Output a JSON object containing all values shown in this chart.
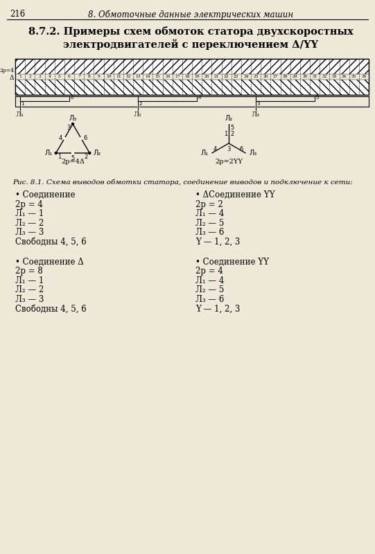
{
  "page_number": "216",
  "header_text": "8. Обмоточные данные электрических машин",
  "section_title_line1": "8.7.2. Примеры схем обмоток статора двухскоростных",
  "section_title_line2": "электродвигателей с переключением Δ/YY",
  "bg_color": "#ede8d8",
  "fig_caption": "Рис. 8.1. Схема выводов обмотки статора, соединение выводов и подключение к сети:",
  "col1_block1_title": "• Соединение",
  "col1_block1_lines": [
    "2р = 4",
    "Л₁ — 1",
    "Л₂ — 2",
    "Л₃ — 3",
    "Свободны 4, 5, 6"
  ],
  "col2_block1_title": "• ΔСоединение YY",
  "col2_block1_lines": [
    "2р = 2",
    "Л₁ — 4",
    "Л₂ — 5",
    "Л₃ — 6",
    "Y — 1, 2, 3"
  ],
  "col1_block2_title": "• Соединение Δ",
  "col1_block2_lines": [
    "2р = 8",
    "Л₁ — 1",
    "Л₂ — 2",
    "Л₃ — 3",
    "Свободны 4, 5, 6"
  ],
  "col2_block2_title": "• Соединение YY",
  "col2_block2_lines": [
    "2р = 4",
    "Л₁ — 4",
    "Л₂ — 5",
    "Л₃ — 6",
    "Y — 1, 2, 3"
  ],
  "slot_count": 36
}
